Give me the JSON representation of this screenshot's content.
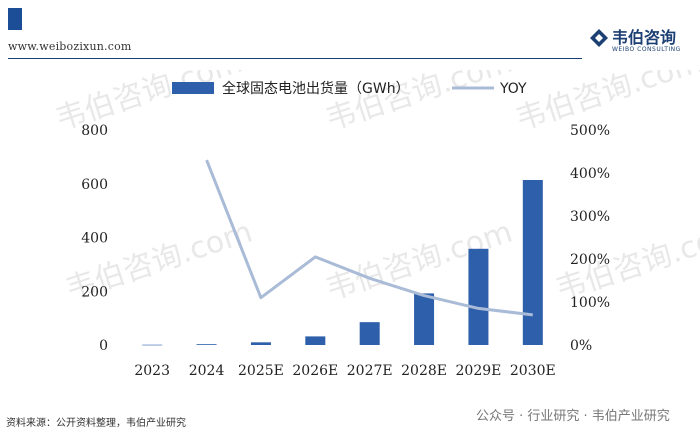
{
  "header": {
    "site_url": "www.weibozixun.com",
    "brand_name": "韦伯咨询",
    "brand_subtitle": "WEIBO CONSULTING",
    "accent_color": "#1c4e97"
  },
  "footer": {
    "source": "资料来源：公开资料整理，韦伯产业研究",
    "wechat": "公众号 · 行业研究 · 韦伯产业研究"
  },
  "watermark": {
    "text": "韦伯咨询.com",
    "color": "#bdbdbd"
  },
  "chart_data": {
    "type": "bar",
    "categories": [
      "2023",
      "2024",
      "2025E",
      "2026E",
      "2027E",
      "2028E",
      "2029E",
      "2030E"
    ],
    "series": [
      {
        "name": "全球固态电池出货量（GWh）",
        "type": "bar",
        "axis": "left",
        "color": "#2d5fab",
        "values": [
          1,
          3,
          10,
          32,
          85,
          192,
          358,
          614
        ]
      },
      {
        "name": "YOY",
        "type": "line",
        "axis": "right",
        "color": "#a9bbd6",
        "values": [
          null,
          430,
          110,
          205,
          155,
          115,
          85,
          70
        ]
      }
    ],
    "y_left": {
      "min": 0,
      "max": 800,
      "ticks": [
        "0",
        "200",
        "400",
        "600",
        "800"
      ]
    },
    "y_right": {
      "min": 0,
      "max": 500,
      "ticks": [
        "0%",
        "100%",
        "200%",
        "300%",
        "400%",
        "500%"
      ]
    },
    "legend_position": "top",
    "grid": false,
    "title": "",
    "xlabel": "",
    "ylabel": ""
  }
}
